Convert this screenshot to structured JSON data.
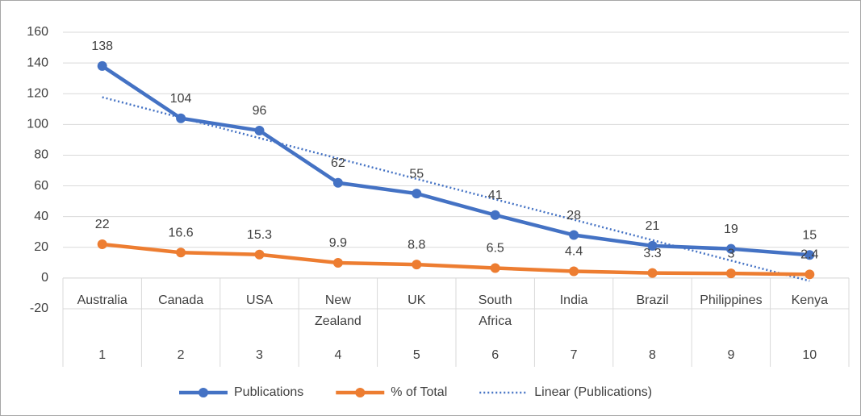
{
  "chart_data": {
    "type": "line",
    "categories": [
      "Australia",
      "Canada",
      "USA",
      "New Zealand",
      "UK",
      "South Africa",
      "India",
      "Brazil",
      "Philippines",
      "Kenya"
    ],
    "subcategories": [
      "1",
      "2",
      "3",
      "4",
      "5",
      "6",
      "7",
      "8",
      "9",
      "10"
    ],
    "series": [
      {
        "name": "Publications",
        "color": "#4472c4",
        "values": [
          138,
          104,
          96,
          62,
          55,
          41,
          28,
          21,
          19,
          15
        ]
      },
      {
        "name": "% of Total",
        "color": "#ed7d31",
        "values": [
          22,
          16.6,
          15.3,
          9.9,
          8.8,
          6.5,
          4.4,
          3.3,
          3,
          2.4
        ]
      }
    ],
    "trendline": {
      "name": "Linear (Publications)",
      "kind": "linear",
      "series": 0,
      "color": "#4472c4"
    },
    "ylim": [
      -20,
      160
    ],
    "yticks": [
      -20,
      0,
      20,
      40,
      60,
      80,
      100,
      120,
      140,
      160
    ],
    "grid": true,
    "legend": "bottom"
  }
}
